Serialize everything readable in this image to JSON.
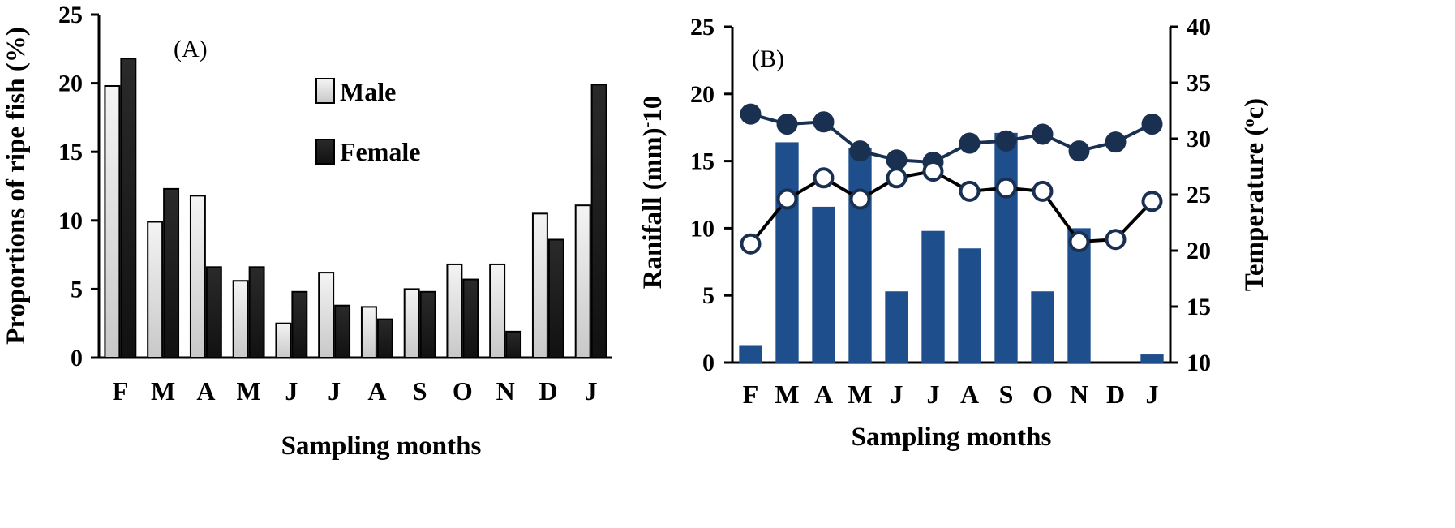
{
  "chart_data": [
    {
      "type": "bar",
      "panel_label": "(A)",
      "categories": [
        "F",
        "M",
        "A",
        "M",
        "J",
        "J",
        "A",
        "S",
        "O",
        "N",
        "D",
        "J"
      ],
      "series": [
        {
          "name": "Male",
          "values": [
            19.8,
            9.9,
            11.8,
            5.6,
            2.5,
            6.2,
            3.7,
            5.0,
            6.8,
            6.8,
            10.5,
            11.1
          ]
        },
        {
          "name": "Female",
          "values": [
            21.8,
            12.3,
            6.6,
            6.6,
            4.8,
            3.8,
            2.8,
            4.8,
            5.7,
            1.9,
            8.6,
            19.9
          ]
        }
      ],
      "xlabel": "Sampling months",
      "ylabel": "Proportions of ripe fish (%)",
      "ylim": [
        0,
        25
      ],
      "yticks": [
        0,
        5,
        10,
        15,
        20,
        25
      ],
      "legend_position": "top-center",
      "colors": {
        "male": "#e6e6e6",
        "female": "#1e1e1e"
      }
    },
    {
      "type": "bar+line",
      "panel_label": "(B)",
      "categories": [
        "F",
        "M",
        "A",
        "M",
        "J",
        "J",
        "A",
        "S",
        "O",
        "N",
        "D",
        "J"
      ],
      "rainfall": {
        "name": "Rainfall",
        "values": [
          1.3,
          16.4,
          11.6,
          16.0,
          5.3,
          9.8,
          8.5,
          17.1,
          5.3,
          10.0,
          0.0,
          0.6
        ]
      },
      "temperature_series": [
        {
          "name": "Temperature (filled)",
          "values": [
            32.2,
            31.3,
            31.5,
            28.9,
            28.1,
            27.9,
            29.6,
            29.8,
            30.4,
            28.9,
            29.7,
            31.3
          ]
        },
        {
          "name": "Temperature (open)",
          "values": [
            20.6,
            24.6,
            26.5,
            24.6,
            26.5,
            27.1,
            25.3,
            25.6,
            25.3,
            20.8,
            21.0,
            24.4
          ]
        }
      ],
      "xlabel": "Sampling months",
      "ylabel_left": "Ranifall (mm)",
      "ylabel_left_sup": "-",
      "ylabel_left_tail": "10",
      "ylabel_right": "Temperature (",
      "ylabel_right_sup": "o",
      "ylabel_right_tail": "c)",
      "ylim_left": [
        0,
        25
      ],
      "yticks_left": [
        0,
        5,
        10,
        15,
        20,
        25
      ],
      "ylim_right": [
        10,
        40
      ],
      "yticks_right": [
        10,
        15,
        20,
        25,
        30,
        35,
        40
      ],
      "colors": {
        "bars": "#1f4e8c",
        "line_filled": "#1a3050",
        "line_open": "#000000"
      }
    }
  ],
  "legend": {
    "male_label": "Male",
    "female_label": "Female"
  }
}
